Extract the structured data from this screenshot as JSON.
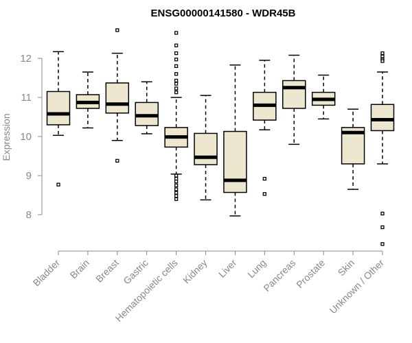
{
  "chart_data": {
    "type": "boxplot",
    "title": "ENSG00000141580 - WDR45B",
    "xlabel": "",
    "ylabel": "Expression",
    "ylim": [
      7.0,
      13.0
    ],
    "yticks": [
      8,
      9,
      10,
      11,
      12
    ],
    "box_fill": "#ede7cf",
    "categories": [
      "Bladder",
      "Brain",
      "Breast",
      "Gastric",
      "Hematopoietic cells",
      "Kidney",
      "Liver",
      "Lung",
      "Pancreas",
      "Prostate",
      "Skin",
      "Unknown / Other"
    ],
    "boxes": [
      {
        "category": "Bladder",
        "whisker_low": 10.03,
        "q1": 10.3,
        "median": 10.58,
        "q3": 11.15,
        "whisker_high": 12.17,
        "outliers": [
          8.77
        ]
      },
      {
        "category": "Brain",
        "whisker_low": 10.22,
        "q1": 10.72,
        "median": 10.87,
        "q3": 11.07,
        "whisker_high": 11.65,
        "outliers": []
      },
      {
        "category": "Breast",
        "whisker_low": 9.9,
        "q1": 10.6,
        "median": 10.83,
        "q3": 11.37,
        "whisker_high": 12.13,
        "outliers": [
          12.72,
          9.38
        ]
      },
      {
        "category": "Gastric",
        "whisker_low": 10.07,
        "q1": 10.28,
        "median": 10.53,
        "q3": 10.87,
        "whisker_high": 11.4,
        "outliers": []
      },
      {
        "category": "Hematopoietic cells",
        "whisker_low": 9.04,
        "q1": 9.73,
        "median": 9.99,
        "q3": 10.23,
        "whisker_high": 11.0,
        "outliers": [
          12.65,
          12.33,
          12.13,
          11.97,
          11.8,
          11.6,
          11.43,
          11.35,
          11.23,
          11.13,
          9.0,
          8.92,
          8.85,
          8.75,
          8.65,
          8.56,
          8.48,
          8.4
        ]
      },
      {
        "category": "Kidney",
        "whisker_low": 8.38,
        "q1": 9.28,
        "median": 9.47,
        "q3": 10.08,
        "whisker_high": 11.05,
        "outliers": []
      },
      {
        "category": "Liver",
        "whisker_low": 7.97,
        "q1": 8.57,
        "median": 8.88,
        "q3": 10.13,
        "whisker_high": 11.83,
        "outliers": []
      },
      {
        "category": "Lung",
        "whisker_low": 10.17,
        "q1": 10.42,
        "median": 10.8,
        "q3": 11.13,
        "whisker_high": 11.95,
        "outliers": [
          8.92,
          8.53
        ]
      },
      {
        "category": "Pancreas",
        "whisker_low": 9.8,
        "q1": 10.72,
        "median": 11.25,
        "q3": 11.43,
        "whisker_high": 12.08,
        "outliers": []
      },
      {
        "category": "Prostate",
        "whisker_low": 10.45,
        "q1": 10.8,
        "median": 10.95,
        "q3": 11.13,
        "whisker_high": 11.57,
        "outliers": []
      },
      {
        "category": "Skin",
        "whisker_low": 8.65,
        "q1": 9.3,
        "median": 10.1,
        "q3": 10.23,
        "whisker_high": 10.7,
        "outliers": []
      },
      {
        "category": "Unknown / Other",
        "whisker_low": 9.3,
        "q1": 10.15,
        "median": 10.43,
        "q3": 10.82,
        "whisker_high": 11.65,
        "outliers": [
          12.13,
          12.05,
          11.97,
          11.93,
          8.03,
          7.68,
          7.25
        ]
      }
    ]
  }
}
